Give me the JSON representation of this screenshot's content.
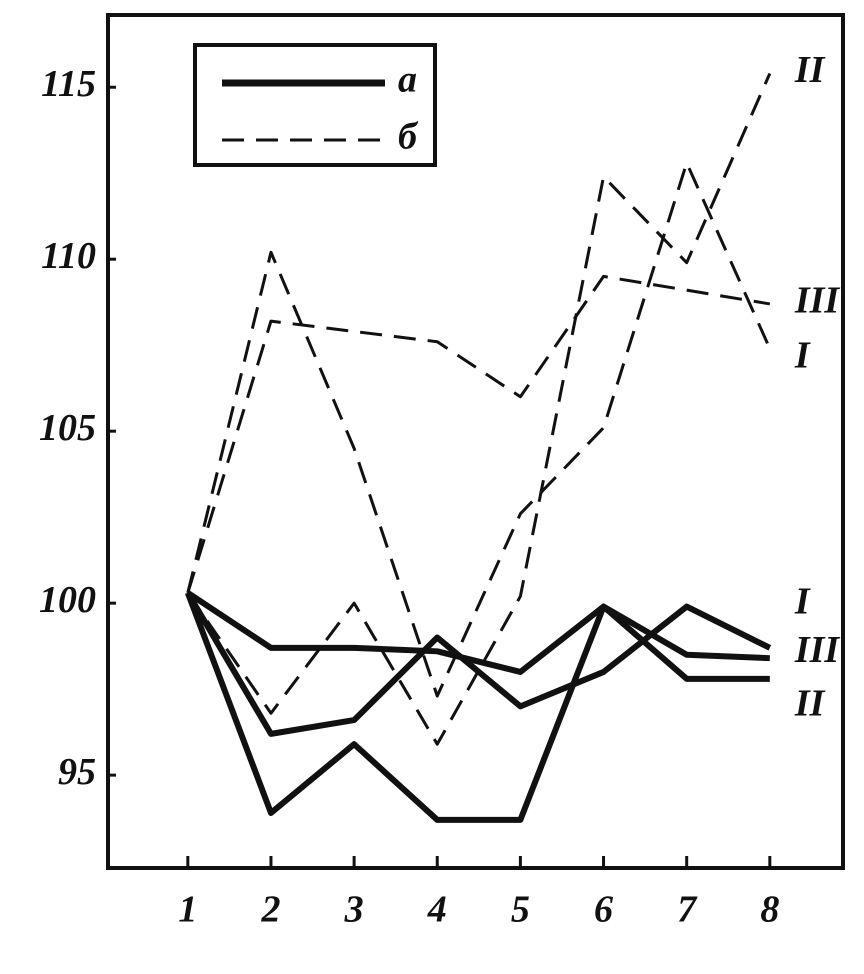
{
  "chart_data": {
    "type": "line",
    "x": [
      1,
      2,
      3,
      4,
      5,
      6,
      7,
      8
    ],
    "xlim": [
      0.04,
      8.88
    ],
    "xticks": [
      1,
      2,
      3,
      4,
      5,
      6,
      7,
      8
    ],
    "ylim": [
      92.3,
      117.1
    ],
    "yticks": [
      95,
      100,
      105,
      110,
      115
    ],
    "legend": [
      {
        "label": "а",
        "dashed": false
      },
      {
        "label": "б",
        "dashed": true
      }
    ],
    "series": [
      {
        "name": "I",
        "dashed": false,
        "color": "#111111",
        "values": [
          100.3,
          96.2,
          96.6,
          99.0,
          97.0,
          98.0,
          99.9,
          98.7
        ]
      },
      {
        "name": "II",
        "dashed": false,
        "color": "#111111",
        "values": [
          100.3,
          93.9,
          95.9,
          93.7,
          93.7,
          99.9,
          97.8,
          97.8
        ]
      },
      {
        "name": "III",
        "dashed": false,
        "color": "#111111",
        "values": [
          100.3,
          98.7,
          98.7,
          98.6,
          98.0,
          99.9,
          98.5,
          98.4
        ]
      },
      {
        "name": "I",
        "dashed": true,
        "color": "#111111",
        "values": [
          100.3,
          110.2,
          104.5,
          97.3,
          102.6,
          105.1,
          112.8,
          107.4
        ]
      },
      {
        "name": "II",
        "dashed": true,
        "color": "#111111",
        "values": [
          100.3,
          96.8,
          100.0,
          95.9,
          100.2,
          112.4,
          109.9,
          115.4
        ]
      },
      {
        "name": "III",
        "dashed": true,
        "color": "#111111",
        "values": [
          100.3,
          108.2,
          107.9,
          107.6,
          106.0,
          109.5,
          109.1,
          108.7
        ]
      }
    ]
  }
}
